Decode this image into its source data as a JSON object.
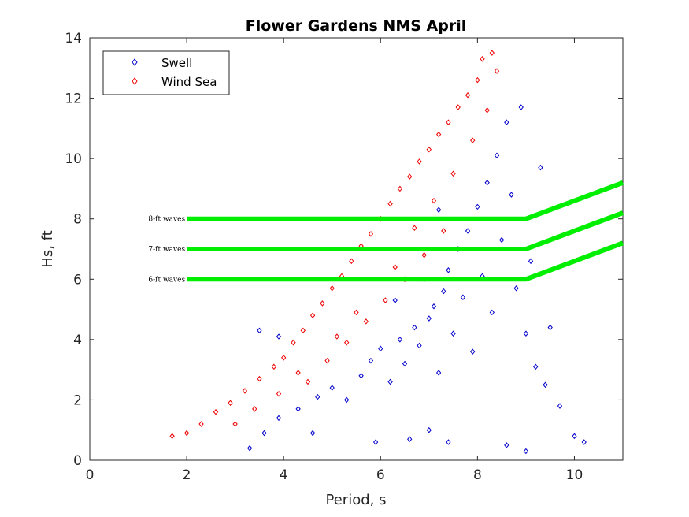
{
  "chart_data": {
    "type": "scatter",
    "title": "Flower Gardens NMS April",
    "xlabel": "Period, s",
    "ylabel": "Hs, ft",
    "xlim": [
      0,
      11
    ],
    "ylim": [
      0,
      14
    ],
    "xticks": [
      0,
      2,
      4,
      6,
      8,
      10
    ],
    "yticks": [
      0,
      2,
      4,
      6,
      8,
      10,
      12,
      14
    ],
    "grid": false,
    "legend_position": "top-left",
    "series": [
      {
        "name": "Swell",
        "color": "#0000cc",
        "marker": "diamond",
        "points": [
          [
            3.3,
            0.4
          ],
          [
            3.6,
            0.9
          ],
          [
            3.9,
            1.4
          ],
          [
            4.3,
            1.7
          ],
          [
            4.7,
            2.1
          ],
          [
            5.0,
            2.4
          ],
          [
            5.3,
            2.0
          ],
          [
            5.6,
            2.8
          ],
          [
            5.8,
            3.3
          ],
          [
            6.0,
            3.7
          ],
          [
            6.2,
            2.6
          ],
          [
            6.4,
            4.0
          ],
          [
            6.5,
            3.2
          ],
          [
            6.7,
            4.4
          ],
          [
            6.8,
            3.8
          ],
          [
            7.0,
            4.7
          ],
          [
            7.1,
            5.1
          ],
          [
            7.2,
            2.9
          ],
          [
            7.3,
            5.6
          ],
          [
            7.4,
            6.3
          ],
          [
            7.5,
            4.2
          ],
          [
            7.6,
            7.0
          ],
          [
            7.7,
            5.4
          ],
          [
            7.8,
            7.6
          ],
          [
            7.9,
            3.6
          ],
          [
            8.0,
            8.4
          ],
          [
            8.1,
            6.1
          ],
          [
            8.2,
            9.2
          ],
          [
            8.3,
            4.9
          ],
          [
            8.4,
            10.1
          ],
          [
            8.5,
            7.3
          ],
          [
            8.6,
            11.2
          ],
          [
            8.7,
            8.8
          ],
          [
            8.8,
            5.7
          ],
          [
            8.9,
            11.7
          ],
          [
            9.0,
            4.2
          ],
          [
            9.1,
            6.6
          ],
          [
            9.2,
            3.1
          ],
          [
            9.3,
            9.7
          ],
          [
            9.4,
            2.5
          ],
          [
            9.5,
            4.4
          ],
          [
            9.7,
            1.8
          ],
          [
            10.0,
            0.8
          ],
          [
            10.2,
            0.6
          ],
          [
            7.0,
            1.0
          ],
          [
            6.6,
            0.7
          ],
          [
            5.9,
            0.6
          ],
          [
            4.6,
            0.9
          ],
          [
            3.9,
            4.1
          ],
          [
            3.5,
            4.3
          ],
          [
            9.0,
            0.3
          ],
          [
            8.6,
            0.5
          ],
          [
            7.4,
            0.6
          ],
          [
            6.3,
            5.3
          ],
          [
            6.9,
            6.0
          ],
          [
            7.2,
            8.3
          ]
        ]
      },
      {
        "name": "Wind Sea",
        "color": "#ee0000",
        "marker": "diamond",
        "points": [
          [
            1.7,
            0.8
          ],
          [
            2.0,
            0.9
          ],
          [
            2.3,
            1.2
          ],
          [
            2.6,
            1.6
          ],
          [
            2.9,
            1.9
          ],
          [
            3.2,
            2.3
          ],
          [
            3.5,
            2.7
          ],
          [
            3.8,
            3.1
          ],
          [
            4.0,
            3.4
          ],
          [
            4.2,
            3.9
          ],
          [
            4.4,
            4.3
          ],
          [
            4.6,
            4.8
          ],
          [
            4.8,
            5.2
          ],
          [
            5.0,
            5.7
          ],
          [
            5.2,
            6.1
          ],
          [
            5.4,
            6.6
          ],
          [
            5.6,
            7.1
          ],
          [
            5.8,
            7.5
          ],
          [
            6.0,
            8.0
          ],
          [
            6.2,
            8.5
          ],
          [
            6.4,
            9.0
          ],
          [
            6.6,
            9.4
          ],
          [
            6.8,
            9.9
          ],
          [
            7.0,
            10.3
          ],
          [
            7.2,
            10.8
          ],
          [
            7.4,
            11.2
          ],
          [
            7.6,
            11.7
          ],
          [
            7.8,
            12.1
          ],
          [
            8.0,
            12.6
          ],
          [
            8.3,
            13.5
          ],
          [
            8.1,
            13.3
          ],
          [
            8.4,
            12.9
          ],
          [
            4.5,
            2.6
          ],
          [
            4.9,
            3.3
          ],
          [
            5.3,
            3.9
          ],
          [
            5.7,
            4.6
          ],
          [
            6.1,
            5.3
          ],
          [
            6.5,
            6.0
          ],
          [
            6.9,
            6.8
          ],
          [
            7.3,
            7.6
          ],
          [
            3.0,
            1.2
          ],
          [
            3.4,
            1.7
          ],
          [
            3.9,
            2.2
          ],
          [
            4.3,
            2.9
          ],
          [
            5.1,
            4.1
          ],
          [
            5.5,
            4.9
          ],
          [
            6.3,
            6.4
          ],
          [
            6.7,
            7.7
          ],
          [
            7.1,
            8.6
          ],
          [
            7.5,
            9.5
          ],
          [
            7.9,
            10.6
          ],
          [
            8.2,
            11.6
          ]
        ]
      }
    ],
    "threshold_lines": [
      {
        "label": "8-ft waves",
        "color": "#00ee00",
        "points": [
          [
            2,
            8
          ],
          [
            9,
            8
          ],
          [
            11,
            9.2
          ]
        ]
      },
      {
        "label": "7-ft waves",
        "color": "#00ee00",
        "points": [
          [
            2,
            7
          ],
          [
            9,
            7
          ],
          [
            11,
            8.2
          ]
        ]
      },
      {
        "label": "6-ft waves",
        "color": "#00ee00",
        "points": [
          [
            2,
            6
          ],
          [
            9,
            6
          ],
          [
            11,
            7.2
          ]
        ]
      }
    ]
  }
}
